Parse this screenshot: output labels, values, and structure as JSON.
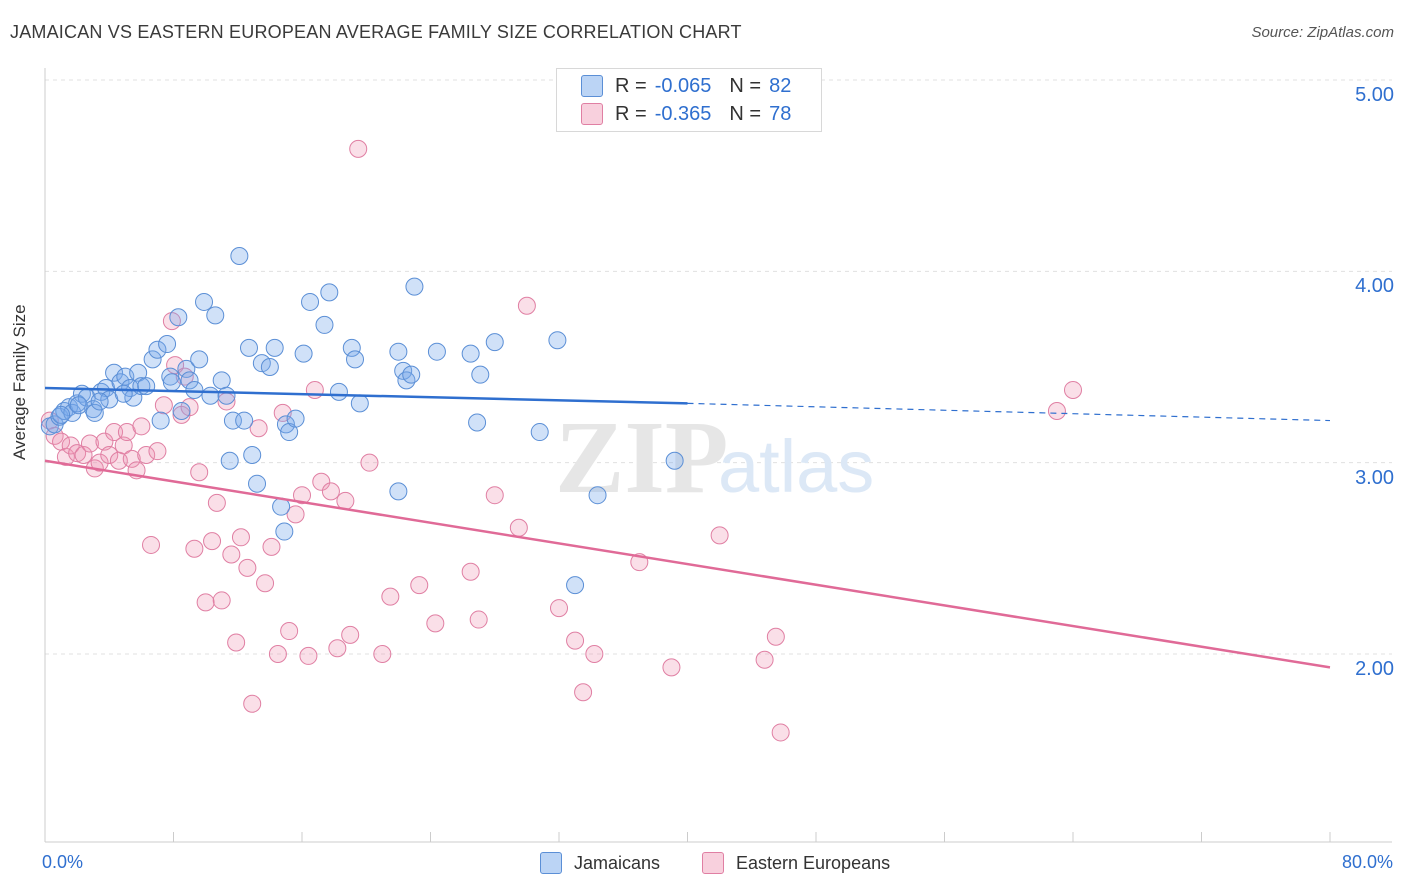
{
  "title": "JAMAICAN VS EASTERN EUROPEAN AVERAGE FAMILY SIZE CORRELATION CHART",
  "source": "Source: ZipAtlas.com",
  "watermark": {
    "zip": "ZIP",
    "atlas": "atlas"
  },
  "colors": {
    "jamaican_fill": "rgba(120,170,235,0.35)",
    "jamaican_stroke": "#5b8fd6",
    "jamaican_line": "#2f6fcf",
    "eastern_fill": "rgba(240,150,180,0.3)",
    "eastern_stroke": "#e07fa3",
    "eastern_line": "#e06a97",
    "axis_text": "#2f6fcf"
  },
  "legend": {
    "rows": [
      {
        "r_label": "R =",
        "r_value": "-0.065",
        "n_label": "N =",
        "n_value": "82"
      },
      {
        "r_label": "R =",
        "r_value": "-0.365",
        "n_label": "N =",
        "n_value": "78"
      }
    ]
  },
  "bottom_legend": {
    "jamaicans": "Jamaicans",
    "eastern": "Eastern Europeans"
  },
  "chart_data": {
    "type": "scatter",
    "title": "JAMAICAN VS EASTERN EUROPEAN AVERAGE FAMILY SIZE CORRELATION CHART",
    "xlabel": "",
    "ylabel": "Average Family Size",
    "xlim": [
      0,
      80
    ],
    "ylim": [
      1.2,
      5.1
    ],
    "x_tick_labels": [
      "0.0%",
      "80.0%"
    ],
    "y_ticks": [
      2.0,
      3.0,
      4.0,
      5.0
    ],
    "y_tick_labels": [
      "2.00",
      "3.00",
      "4.00",
      "5.00"
    ],
    "grid": true,
    "legend_position": "top-center",
    "series": [
      {
        "name": "Jamaicans",
        "r": -0.065,
        "n": 82,
        "trend": {
          "x0": 0,
          "y0": 3.39,
          "x1": 40,
          "y1": 3.31,
          "x_dash_end": 80,
          "y_dash_end": 3.22
        },
        "points": [
          [
            0.3,
            3.19
          ],
          [
            0.6,
            3.2
          ],
          [
            0.9,
            3.24
          ],
          [
            1.2,
            3.27
          ],
          [
            1.5,
            3.29
          ],
          [
            1.7,
            3.26
          ],
          [
            2.0,
            3.31
          ],
          [
            2.3,
            3.36
          ],
          [
            2.6,
            3.34
          ],
          [
            3.0,
            3.28
          ],
          [
            3.1,
            3.26
          ],
          [
            3.5,
            3.37
          ],
          [
            3.8,
            3.39
          ],
          [
            4.0,
            3.33
          ],
          [
            4.3,
            3.47
          ],
          [
            4.7,
            3.42
          ],
          [
            5.0,
            3.45
          ],
          [
            5.3,
            3.39
          ],
          [
            5.5,
            3.34
          ],
          [
            5.8,
            3.47
          ],
          [
            6.0,
            3.4
          ],
          [
            6.3,
            3.4
          ],
          [
            6.7,
            3.54
          ],
          [
            7.0,
            3.59
          ],
          [
            7.2,
            3.22
          ],
          [
            7.6,
            3.62
          ],
          [
            7.8,
            3.45
          ],
          [
            8.3,
            3.76
          ],
          [
            8.5,
            3.27
          ],
          [
            8.8,
            3.49
          ],
          [
            9.0,
            3.43
          ],
          [
            9.3,
            3.38
          ],
          [
            9.6,
            3.54
          ],
          [
            9.9,
            3.84
          ],
          [
            10.3,
            3.35
          ],
          [
            10.6,
            3.77
          ],
          [
            11.0,
            3.43
          ],
          [
            11.3,
            3.35
          ],
          [
            11.5,
            3.01
          ],
          [
            11.7,
            3.22
          ],
          [
            12.1,
            4.08
          ],
          [
            12.4,
            3.22
          ],
          [
            12.7,
            3.6
          ],
          [
            12.9,
            3.04
          ],
          [
            13.2,
            2.89
          ],
          [
            13.5,
            3.52
          ],
          [
            14.0,
            3.5
          ],
          [
            14.3,
            3.6
          ],
          [
            14.7,
            2.77
          ],
          [
            14.9,
            2.64
          ],
          [
            15.0,
            3.2
          ],
          [
            15.2,
            3.16
          ],
          [
            15.6,
            3.23
          ],
          [
            16.1,
            3.57
          ],
          [
            16.5,
            3.84
          ],
          [
            17.4,
            3.72
          ],
          [
            17.7,
            3.89
          ],
          [
            18.3,
            3.37
          ],
          [
            19.1,
            3.6
          ],
          [
            19.3,
            3.54
          ],
          [
            19.6,
            3.31
          ],
          [
            22.0,
            3.58
          ],
          [
            22.3,
            3.48
          ],
          [
            22.5,
            3.43
          ],
          [
            22.8,
            3.46
          ],
          [
            23.0,
            3.92
          ],
          [
            22.0,
            2.85
          ],
          [
            24.4,
            3.58
          ],
          [
            26.5,
            3.57
          ],
          [
            26.9,
            3.21
          ],
          [
            27.1,
            3.46
          ],
          [
            28.0,
            3.63
          ],
          [
            30.8,
            3.16
          ],
          [
            31.9,
            3.64
          ],
          [
            33.0,
            2.36
          ],
          [
            34.4,
            2.83
          ],
          [
            39.2,
            3.01
          ],
          [
            1.0,
            3.25
          ],
          [
            2.1,
            3.3
          ],
          [
            3.4,
            3.32
          ],
          [
            4.9,
            3.36
          ],
          [
            7.9,
            3.42
          ]
        ]
      },
      {
        "name": "Eastern Europeans",
        "r": -0.365,
        "n": 78,
        "trend": {
          "x0": 0,
          "y0": 3.01,
          "x1": 80,
          "y1": 1.93
        },
        "points": [
          [
            0.3,
            3.22
          ],
          [
            0.6,
            3.14
          ],
          [
            1.0,
            3.11
          ],
          [
            1.3,
            3.03
          ],
          [
            1.6,
            3.09
          ],
          [
            2.0,
            3.05
          ],
          [
            2.4,
            3.04
          ],
          [
            2.8,
            3.1
          ],
          [
            3.1,
            2.97
          ],
          [
            3.4,
            3.0
          ],
          [
            3.7,
            3.11
          ],
          [
            4.0,
            3.04
          ],
          [
            4.3,
            3.16
          ],
          [
            4.6,
            3.01
          ],
          [
            4.9,
            3.09
          ],
          [
            5.1,
            3.16
          ],
          [
            5.4,
            3.02
          ],
          [
            5.7,
            2.96
          ],
          [
            6.0,
            3.19
          ],
          [
            6.3,
            3.04
          ],
          [
            6.6,
            2.57
          ],
          [
            7.0,
            3.06
          ],
          [
            7.4,
            3.3
          ],
          [
            7.9,
            3.74
          ],
          [
            8.1,
            3.51
          ],
          [
            8.5,
            3.25
          ],
          [
            8.7,
            3.45
          ],
          [
            9.0,
            3.29
          ],
          [
            9.3,
            2.55
          ],
          [
            9.6,
            2.95
          ],
          [
            10.0,
            2.27
          ],
          [
            10.4,
            2.59
          ],
          [
            10.7,
            2.79
          ],
          [
            11.0,
            2.28
          ],
          [
            11.3,
            3.32
          ],
          [
            11.6,
            2.52
          ],
          [
            11.9,
            2.06
          ],
          [
            12.2,
            2.61
          ],
          [
            12.6,
            2.45
          ],
          [
            12.9,
            1.74
          ],
          [
            13.3,
            3.18
          ],
          [
            13.7,
            2.37
          ],
          [
            14.1,
            2.56
          ],
          [
            14.5,
            2.0
          ],
          [
            14.8,
            3.26
          ],
          [
            15.2,
            2.12
          ],
          [
            15.6,
            2.73
          ],
          [
            16.0,
            2.83
          ],
          [
            16.4,
            1.99
          ],
          [
            16.8,
            3.38
          ],
          [
            17.2,
            2.9
          ],
          [
            17.8,
            2.85
          ],
          [
            18.2,
            2.03
          ],
          [
            18.7,
            2.8
          ],
          [
            19.0,
            2.1
          ],
          [
            19.5,
            4.64
          ],
          [
            20.2,
            3.0
          ],
          [
            21.0,
            2.0
          ],
          [
            21.5,
            2.3
          ],
          [
            23.3,
            2.36
          ],
          [
            24.3,
            2.16
          ],
          [
            26.5,
            2.43
          ],
          [
            27.0,
            2.18
          ],
          [
            28.0,
            2.83
          ],
          [
            29.5,
            2.66
          ],
          [
            30.0,
            3.82
          ],
          [
            32.0,
            2.24
          ],
          [
            33.0,
            2.07
          ],
          [
            33.5,
            1.8
          ],
          [
            34.2,
            2.0
          ],
          [
            37.0,
            2.48
          ],
          [
            39.0,
            1.93
          ],
          [
            42.0,
            2.62
          ],
          [
            44.8,
            1.97
          ],
          [
            45.5,
            2.09
          ],
          [
            45.8,
            1.59
          ],
          [
            63.0,
            3.27
          ],
          [
            64.0,
            3.38
          ]
        ]
      }
    ]
  }
}
